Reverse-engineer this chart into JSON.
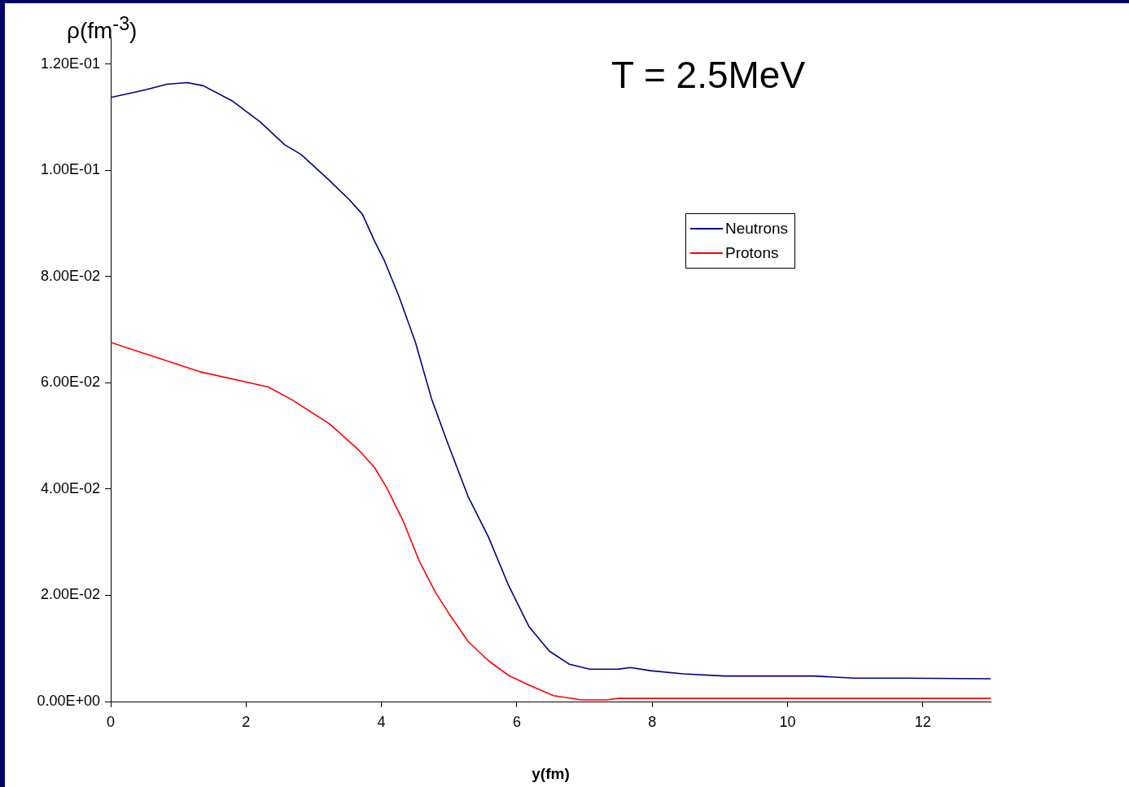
{
  "chart_data": {
    "type": "line",
    "annotations": [
      "T = 2.5MeV"
    ],
    "xlabel": "y(fm)",
    "ylabel": "ρ(fm$^{-3}$)",
    "xlim": [
      0,
      13
    ],
    "xticks": [
      0,
      2,
      4,
      6,
      8,
      10,
      12
    ],
    "ylim": [
      0,
      0.125
    ],
    "yticks": [
      {
        "value": 0,
        "label": "0.00E+00"
      },
      {
        "value": 0.02,
        "label": "2.00E-02"
      },
      {
        "value": 0.04,
        "label": "4.00E-02"
      },
      {
        "value": 0.06,
        "label": "6.00E-02"
      },
      {
        "value": 0.08,
        "label": "8.00E-02"
      },
      {
        "value": 0.1,
        "label": "1.00E-01"
      },
      {
        "value": 0.12,
        "label": "1.20E-01"
      }
    ],
    "grid": false,
    "legend": "top right",
    "marker": "none",
    "series": [
      {
        "name": "Neutrons",
        "color": "#000080",
        "x": [
          0,
          0.29,
          0.53,
          0.83,
          1.13,
          1.37,
          1.79,
          2.21,
          2.57,
          2.81,
          3.23,
          3.53,
          3.72,
          3.9,
          4.04,
          4.26,
          4.5,
          4.74,
          4.98,
          5.28,
          5.58,
          5.88,
          6.18,
          6.48,
          6.78,
          7.08,
          7.5,
          7.68,
          7.98,
          8.46,
          9.07,
          10.39,
          10.99,
          11.71,
          13
        ],
        "values": [
          0.1137,
          0.1145,
          0.1152,
          0.1162,
          0.1165,
          0.1159,
          0.1131,
          0.1091,
          0.1048,
          0.103,
          0.0981,
          0.0944,
          0.0917,
          0.0866,
          0.0831,
          0.0762,
          0.0677,
          0.057,
          0.0486,
          0.0386,
          0.031,
          0.0218,
          0.0141,
          0.0095,
          0.007,
          0.0061,
          0.0061,
          0.0064,
          0.0058,
          0.0052,
          0.0048,
          0.0048,
          0.0044,
          0.0044,
          0.0043
        ]
      },
      {
        "name": "Protons",
        "color": "#ff0000",
        "x": [
          0,
          1.31,
          2.33,
          2.69,
          3.23,
          3.66,
          3.9,
          4.08,
          4.32,
          4.56,
          4.8,
          4.98,
          5.28,
          5.58,
          5.88,
          6.18,
          6.54,
          6.96,
          7.32,
          7.5,
          13
        ],
        "values": [
          0.0676,
          0.0621,
          0.0592,
          0.0567,
          0.0523,
          0.0474,
          0.044,
          0.0402,
          0.034,
          0.0264,
          0.0205,
          0.0169,
          0.0113,
          0.0077,
          0.0049,
          0.0031,
          0.0011,
          0.0003,
          0.0003,
          0.0006,
          0.0006
        ]
      }
    ]
  }
}
